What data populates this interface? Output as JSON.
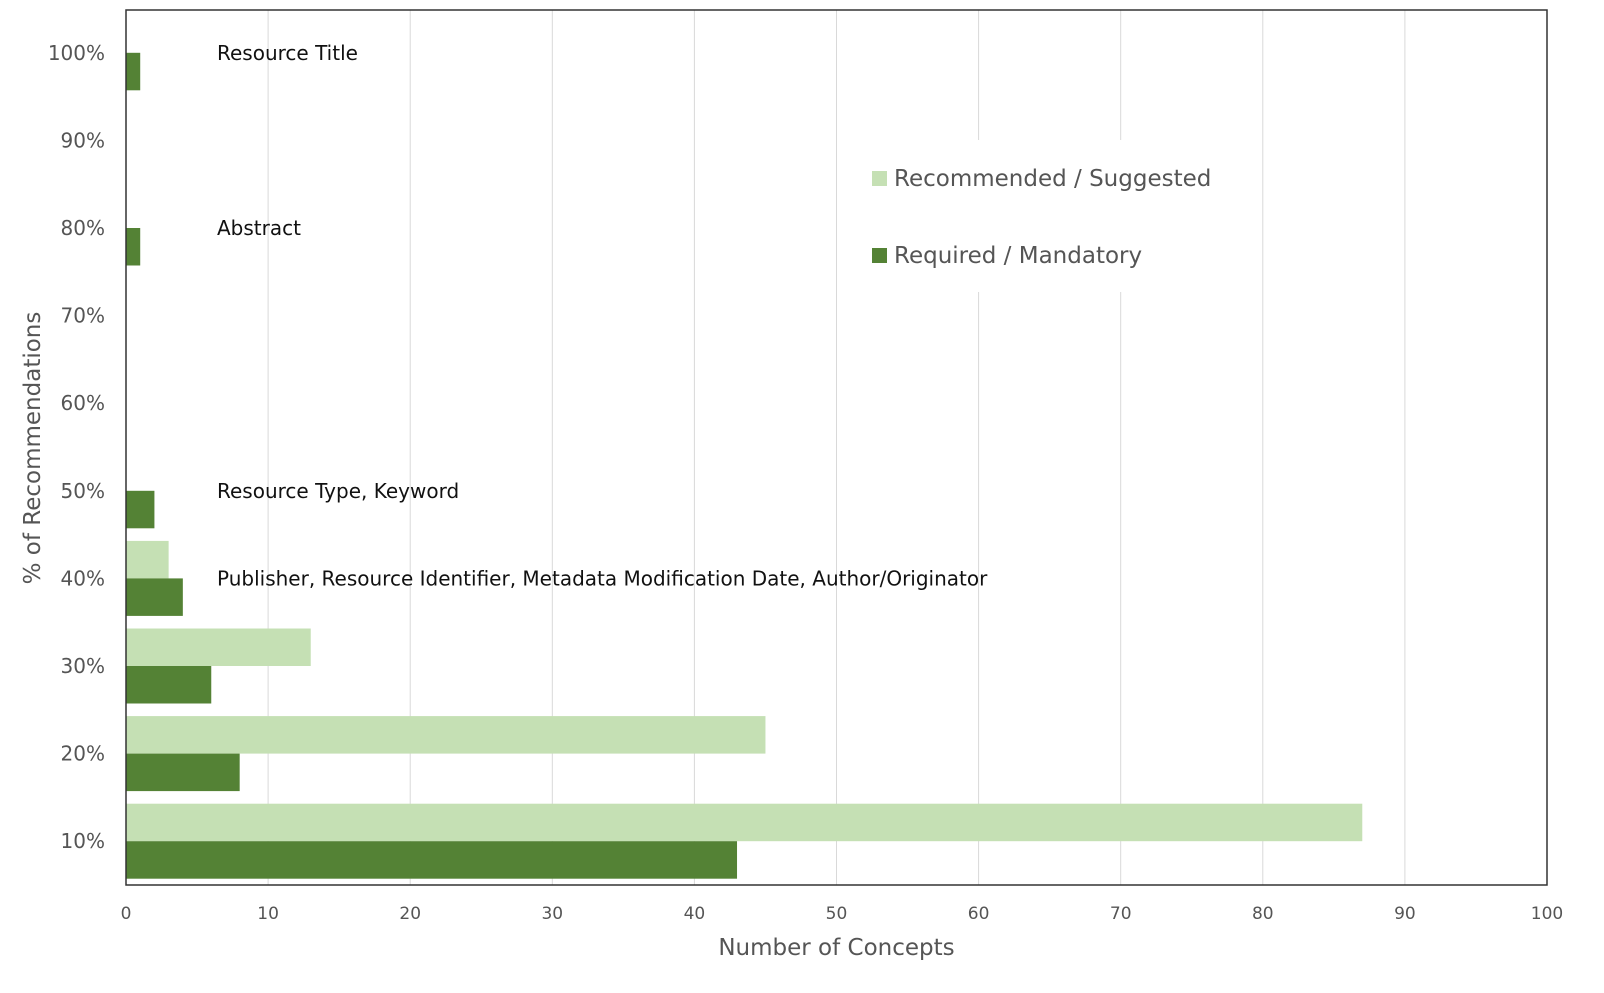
{
  "chart_data": {
    "type": "bar",
    "orientation": "horizontal",
    "categories": [
      "10%",
      "20%",
      "30%",
      "40%",
      "50%",
      "60%",
      "70%",
      "80%",
      "90%",
      "100%"
    ],
    "series": [
      {
        "name": "Recommended / Suggested",
        "color": "#c5e0b4",
        "values": [
          87,
          45,
          13,
          3,
          0,
          0,
          0,
          0,
          0,
          0
        ]
      },
      {
        "name": "Required / Mandatory",
        "color": "#548235",
        "values": [
          43,
          8,
          6,
          4,
          2,
          0,
          0,
          1,
          0,
          1
        ]
      }
    ],
    "xlabel": "Number of Concepts",
    "ylabel": "% of Recommendations",
    "xlim": [
      0,
      100
    ],
    "x_ticks": [
      "0",
      "10",
      "20",
      "30",
      "40",
      "50",
      "60",
      "70",
      "80",
      "90",
      "100"
    ],
    "grid": "vertical",
    "legend_position": "upper-right",
    "annotations": [
      {
        "category": "100%",
        "text": "Resource Title"
      },
      {
        "category": "80%",
        "text": "Abstract"
      },
      {
        "category": "50%",
        "text": "Resource Type, Keyword"
      },
      {
        "category": "40%",
        "text": "Publisher, Resource Identifier, Metadata Modification Date, Author/Originator"
      }
    ]
  }
}
